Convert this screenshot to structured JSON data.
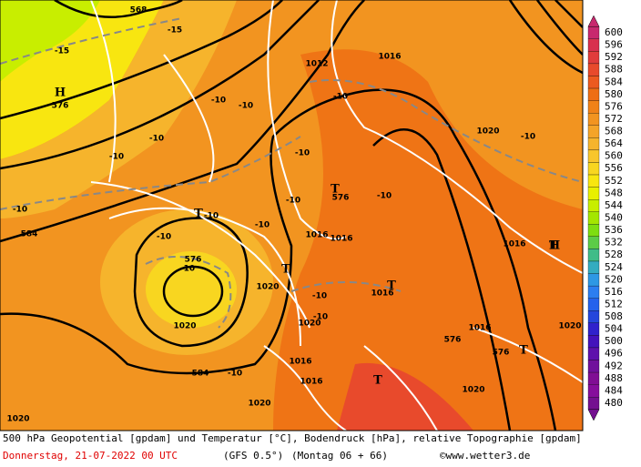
{
  "scale": {
    "labels": [
      600,
      596,
      592,
      588,
      584,
      580,
      576,
      572,
      568,
      564,
      560,
      556,
      552,
      548,
      544,
      540,
      536,
      532,
      528,
      524,
      520,
      516,
      512,
      508,
      504,
      500,
      496,
      492,
      488,
      484,
      480
    ],
    "colors": [
      "#c8286e",
      "#d8304e",
      "#e03c3c",
      "#e84a2c",
      "#ec5a20",
      "#ee6e14",
      "#f08218",
      "#f29420",
      "#f4a428",
      "#f6b42c",
      "#f8c62c",
      "#f8d620",
      "#f8e610",
      "#e8f000",
      "#c8ee00",
      "#a4e600",
      "#7ede10",
      "#5ccc48",
      "#40bc88",
      "#34acc0",
      "#2e98e4",
      "#2c7ef0",
      "#2462ec",
      "#2446dc",
      "#3022cc",
      "#4412bc",
      "#5e10ac",
      "#70109c",
      "#800e94",
      "#860e9c",
      "#741090"
    ]
  },
  "map_labels": [
    "568",
    "-15",
    "-15",
    "H",
    "576",
    "-10",
    "-10",
    "-10",
    "-10",
    "1012",
    "1016",
    "-10",
    "-10",
    "1020",
    "-10",
    "-10",
    "T",
    "T",
    "-10",
    "-10",
    "576",
    "-10",
    "1016",
    "1016",
    "-10",
    "584",
    "576",
    "-10",
    "-10",
    "1020",
    "T",
    "-10",
    "1020",
    "T",
    "1016",
    "1020",
    "T",
    "H",
    "1016",
    "-10",
    "584",
    "-10",
    "1016",
    "T",
    "1016",
    "1020",
    "576",
    "T",
    "1016",
    "1020",
    "1020",
    "576",
    "1020"
  ],
  "footer": {
    "line1": "500 hPa Geopotential [gpdam] und Temperatur [°C], Bodendruck [hPa], relative Topographie [gpdam]",
    "date": "Donnerstag, 21-07-2022  00 UTC",
    "model": "(GFS 0.5°)",
    "run": "(Montag 06 + 66)",
    "credit": "©www.wetter3.de"
  }
}
